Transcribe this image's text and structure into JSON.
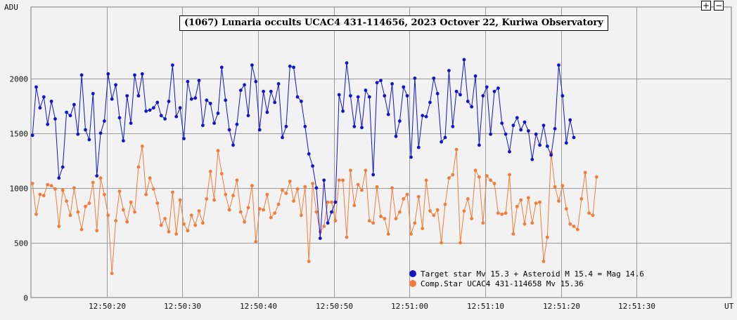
{
  "toolbar": {
    "zoom_in_label": "+",
    "zoom_out_label": "−"
  },
  "colors": {
    "target": "#1414c8",
    "comp": "#f07d3c",
    "grid": "#9a9a9a",
    "frame": "#7a7a7a",
    "plot_bg": "#f2f2f2"
  },
  "chart_data": {
    "type": "line",
    "title": "(1067) Lunaria occults UCAC4 431-114656, 2023 Octover 22, Kuriwa Observatory",
    "ylabel": "ADU",
    "xlabel": "UT",
    "ylim": [
      0,
      2650
    ],
    "y_ticks": [
      0,
      500,
      1000,
      1500,
      2000
    ],
    "x_ticks": [
      "12:50:20",
      "12:50:30",
      "12:50:40",
      "12:50:50",
      "12:51:00",
      "12:51:10",
      "12:51:20",
      "12:51:30"
    ],
    "x_tick_seconds": [
      20,
      30,
      40,
      50,
      60,
      70,
      80,
      90
    ],
    "xlim_seconds": [
      10,
      102.5
    ],
    "sample_start_seconds": 10.2,
    "sample_interval_seconds": 0.5,
    "grid": true,
    "legend_position": "bottom-right",
    "series": [
      {
        "name": "Target star Mv 15.3 + Asteroid M 15.4 = Mag 14.6",
        "values": [
          1480,
          1920,
          1730,
          1830,
          1580,
          1790,
          1630,
          1090,
          1190,
          1690,
          1660,
          1760,
          1490,
          2030,
          1530,
          1440,
          1860,
          1110,
          1500,
          1610,
          2040,
          1810,
          1940,
          1640,
          1430,
          1840,
          1590,
          2030,
          1840,
          2040,
          1700,
          1710,
          1730,
          1780,
          1660,
          1630,
          1790,
          2120,
          1650,
          1730,
          1450,
          1970,
          1810,
          1820,
          1980,
          1570,
          1800,
          1770,
          1590,
          1680,
          2100,
          1800,
          1530,
          1390,
          1580,
          1890,
          1940,
          1660,
          2120,
          1970,
          1530,
          1880,
          1690,
          1880,
          1780,
          1950,
          1460,
          1560,
          2110,
          2100,
          1830,
          1790,
          1560,
          1310,
          1200,
          1000,
          540,
          1070,
          680,
          780,
          870,
          1850,
          1700,
          2140,
          1840,
          1560,
          1830,
          1550,
          1890,
          1830,
          1120,
          1960,
          1980,
          1840,
          1670,
          1950,
          1470,
          1610,
          1920,
          1840,
          1280,
          2000,
          1370,
          1660,
          1650,
          1780,
          2000,
          1860,
          1420,
          1460,
          2070,
          1560,
          1880,
          1850,
          2170,
          1790,
          1740,
          2020,
          1390,
          1840,
          1920,
          1490,
          1880,
          1910,
          1590,
          1490,
          1330,
          1570,
          1640,
          1530,
          1600,
          1520,
          1260,
          1490,
          1390,
          1570,
          1380,
          1300,
          1540,
          2120,
          1840,
          1410,
          1620,
          1460
        ]
      },
      {
        "name": "Comp.Star UCAC4 431-114658 Mv 15.36",
        "values": [
          1040,
          760,
          940,
          930,
          1030,
          1020,
          990,
          650,
          980,
          880,
          750,
          1000,
          780,
          620,
          830,
          860,
          1050,
          610,
          1090,
          940,
          750,
          220,
          700,
          970,
          800,
          690,
          870,
          780,
          1190,
          1380,
          940,
          1090,
          990,
          860,
          660,
          720,
          600,
          960,
          580,
          890,
          670,
          610,
          750,
          660,
          790,
          680,
          900,
          1150,
          890,
          1340,
          1130,
          940,
          800,
          930,
          1070,
          780,
          690,
          820,
          1020,
          510,
          810,
          800,
          940,
          730,
          770,
          850,
          980,
          950,
          1060,
          880,
          990,
          750,
          1010,
          330,
          1040,
          780,
          600,
          650,
          870,
          870,
          700,
          1070,
          1070,
          550,
          1160,
          840,
          1030,
          980,
          1160,
          700,
          680,
          1010,
          740,
          720,
          580,
          1000,
          720,
          780,
          900,
          940,
          580,
          680,
          920,
          630,
          1070,
          790,
          750,
          800,
          500,
          850,
          1090,
          1120,
          1350,
          500,
          790,
          900,
          720,
          1160,
          1100,
          680,
          1110,
          1070,
          1040,
          770,
          760,
          770,
          1120,
          580,
          830,
          890,
          670,
          910,
          680,
          860,
          870,
          330,
          550,
          1320,
          1010,
          880,
          1020,
          810,
          670,
          650,
          620,
          900,
          1140,
          770,
          750,
          1100
        ]
      }
    ]
  }
}
